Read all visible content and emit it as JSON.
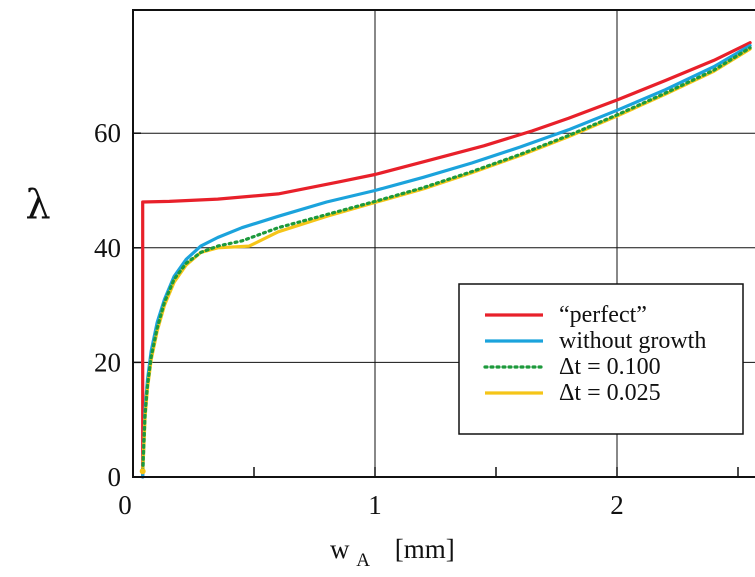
{
  "chart_data": {
    "type": "line",
    "xlabel": {
      "main": "w",
      "sub": "A",
      "unit": "[mm]"
    },
    "ylabel": "λ",
    "xlim": [
      0,
      2.55
    ],
    "ylim": [
      0,
      80
    ],
    "x_ticks": [
      0,
      1,
      2
    ],
    "x_minor_ticks": [
      0.5,
      1.5,
      2.5
    ],
    "y_ticks": [
      0,
      20,
      40,
      60
    ],
    "y_tick_labels": [
      "0",
      "20",
      "40",
      "60"
    ],
    "x_tick_labels": [
      "0",
      "1",
      "2"
    ],
    "grid": true,
    "legend_position": "lower-right",
    "series": [
      {
        "name": "“perfect”",
        "color": "#e8202a",
        "style": "solid",
        "points": [
          [
            0.04,
            0
          ],
          [
            0.04,
            48
          ],
          [
            0.15,
            48.1
          ],
          [
            0.35,
            48.5
          ],
          [
            0.6,
            49.4
          ],
          [
            0.85,
            51.5
          ],
          [
            1.0,
            52.8
          ],
          [
            1.2,
            55.0
          ],
          [
            1.45,
            57.8
          ],
          [
            1.65,
            60.4
          ],
          [
            1.8,
            62.6
          ],
          [
            2.0,
            65.8
          ],
          [
            2.2,
            69.2
          ],
          [
            2.4,
            72.7
          ],
          [
            2.55,
            75.8
          ]
        ]
      },
      {
        "name": "without growth",
        "color": "#1ba3dc",
        "style": "solid",
        "points": [
          [
            0.04,
            0
          ],
          [
            0.045,
            6
          ],
          [
            0.05,
            12
          ],
          [
            0.06,
            17
          ],
          [
            0.075,
            22
          ],
          [
            0.1,
            27
          ],
          [
            0.13,
            31
          ],
          [
            0.17,
            35
          ],
          [
            0.22,
            38
          ],
          [
            0.28,
            40.3
          ],
          [
            0.35,
            41.8
          ],
          [
            0.45,
            43.5
          ],
          [
            0.6,
            45.5
          ],
          [
            0.8,
            48
          ],
          [
            1.0,
            50
          ],
          [
            1.2,
            52.3
          ],
          [
            1.4,
            54.8
          ],
          [
            1.6,
            57.6
          ],
          [
            1.8,
            60.6
          ],
          [
            2.0,
            64
          ],
          [
            2.2,
            67.6
          ],
          [
            2.4,
            71.6
          ],
          [
            2.55,
            75.3
          ]
        ]
      },
      {
        "name": "Δt = 0.100",
        "color": "#1d9a3c",
        "style": "dotted",
        "points": [
          [
            0.04,
            1
          ],
          [
            0.045,
            6
          ],
          [
            0.05,
            11
          ],
          [
            0.06,
            16
          ],
          [
            0.075,
            21
          ],
          [
            0.1,
            26
          ],
          [
            0.13,
            30.5
          ],
          [
            0.17,
            34.5
          ],
          [
            0.22,
            37.3
          ],
          [
            0.28,
            39.2
          ],
          [
            0.35,
            40.3
          ],
          [
            0.45,
            41.2
          ],
          [
            0.6,
            43.5
          ],
          [
            0.8,
            45.8
          ],
          [
            1.0,
            48.1
          ],
          [
            1.2,
            50.5
          ],
          [
            1.4,
            53.3
          ],
          [
            1.6,
            56.3
          ],
          [
            1.8,
            59.6
          ],
          [
            2.0,
            63.2
          ],
          [
            2.2,
            67
          ],
          [
            2.4,
            71
          ],
          [
            2.55,
            74.9
          ]
        ]
      },
      {
        "name": "Δt = 0.025",
        "color": "#f5c518",
        "style": "solid",
        "points": [
          [
            0.04,
            1
          ],
          [
            0.045,
            5.5
          ],
          [
            0.05,
            10.5
          ],
          [
            0.06,
            15.5
          ],
          [
            0.075,
            20.5
          ],
          [
            0.1,
            25.5
          ],
          [
            0.13,
            30
          ],
          [
            0.17,
            34
          ],
          [
            0.22,
            37
          ],
          [
            0.28,
            39.2
          ],
          [
            0.35,
            40
          ],
          [
            0.48,
            40.3
          ],
          [
            0.6,
            42.8
          ],
          [
            0.8,
            45.5
          ],
          [
            1.0,
            47.9
          ],
          [
            1.2,
            50.3
          ],
          [
            1.4,
            53.1
          ],
          [
            1.6,
            56.1
          ],
          [
            1.8,
            59.4
          ],
          [
            2.0,
            63
          ],
          [
            2.2,
            66.8
          ],
          [
            2.4,
            70.8
          ],
          [
            2.55,
            74.7
          ]
        ]
      }
    ]
  }
}
